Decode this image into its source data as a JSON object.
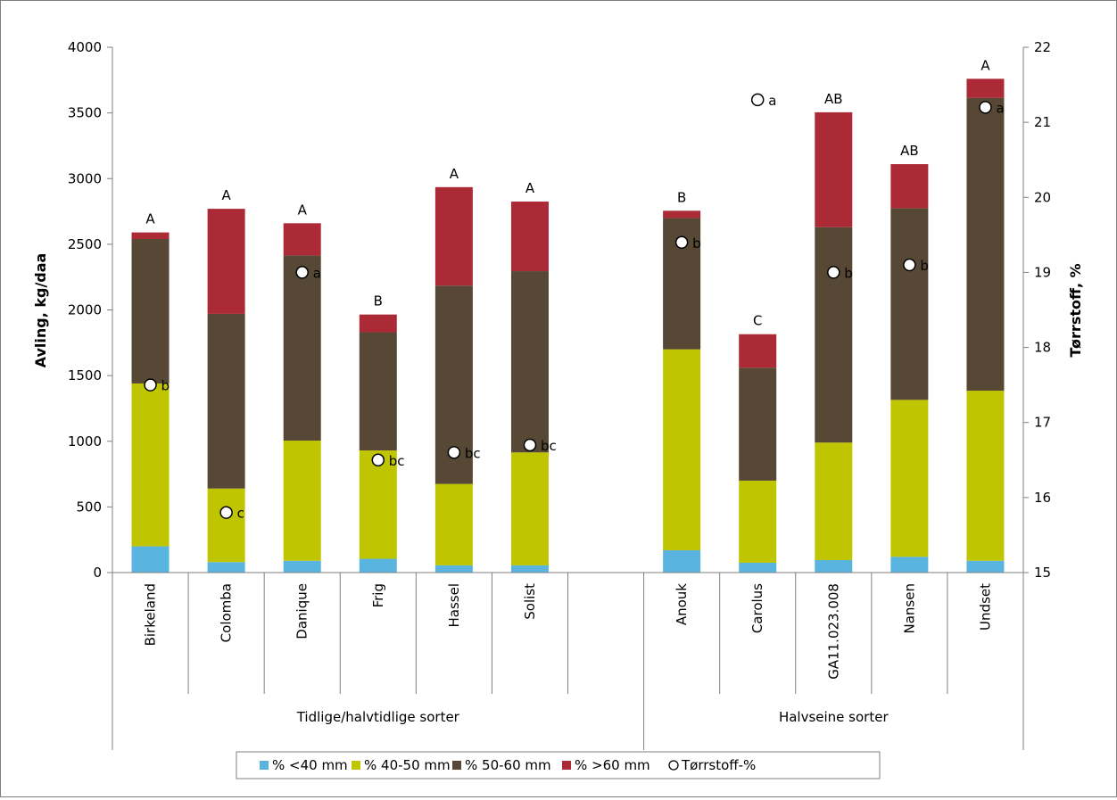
{
  "chart_data": {
    "type": "bar",
    "stacked": true,
    "categories": [
      "Birkeland",
      "Colomba",
      "Danique",
      "Frig",
      "Hassel",
      "Solist",
      "",
      "Anouk",
      "Carolus",
      "GA11.023.008",
      "Nansen",
      "Undset"
    ],
    "groups": [
      {
        "label": "Tidlige/halvtidlige sorter",
        "categories": [
          "Birkeland",
          "Colomba",
          "Danique",
          "Frig",
          "Hassel",
          "Solist",
          ""
        ]
      },
      {
        "label": "Halvseine sorter",
        "categories": [
          "Anouk",
          "Carolus",
          "GA11.023.008",
          "Nansen",
          "Undset"
        ]
      }
    ],
    "series": [
      {
        "name": "% <40 mm",
        "color": "#5ab4e0",
        "values": [
          200,
          80,
          90,
          105,
          55,
          55,
          null,
          170,
          75,
          95,
          120,
          90
        ]
      },
      {
        "name": "% 40-50 mm",
        "color": "#bfc500",
        "values": [
          1240,
          560,
          915,
          825,
          620,
          860,
          null,
          1530,
          625,
          895,
          1195,
          1295
        ]
      },
      {
        "name": "% 50-60 mm",
        "color": "#564835",
        "values": [
          1100,
          1330,
          1410,
          900,
          1510,
          1380,
          null,
          1000,
          860,
          1640,
          1460,
          2230
        ]
      },
      {
        "name": "% >60 mm",
        "color": "#ac2a35",
        "values": [
          50,
          800,
          245,
          135,
          750,
          530,
          null,
          55,
          255,
          875,
          335,
          145
        ]
      }
    ],
    "totals_letters": [
      "A",
      "A",
      "A",
      "B",
      "A",
      "A",
      "",
      "B",
      "C",
      "AB",
      "AB",
      "A"
    ],
    "secondary_series": {
      "name": "Tørrstoff-%",
      "values": [
        17.5,
        15.8,
        19.0,
        16.5,
        16.6,
        16.7,
        null,
        19.4,
        21.3,
        19.0,
        19.1,
        21.2
      ],
      "letters": [
        "b",
        "c",
        "a",
        "bc",
        "bc",
        "bc",
        "",
        "b",
        "a",
        "b",
        "b",
        "a"
      ]
    },
    "ylabel": "Avling, kg/daa",
    "y2label": "Tørrstoff, %",
    "ylim": [
      0,
      4000
    ],
    "yticks": [
      0,
      500,
      1000,
      1500,
      2000,
      2500,
      3000,
      3500,
      4000
    ],
    "y2lim": [
      15,
      22
    ],
    "y2ticks": [
      15,
      16,
      17,
      18,
      19,
      20,
      21,
      22
    ],
    "grid": false,
    "legend_position": "bottom"
  }
}
